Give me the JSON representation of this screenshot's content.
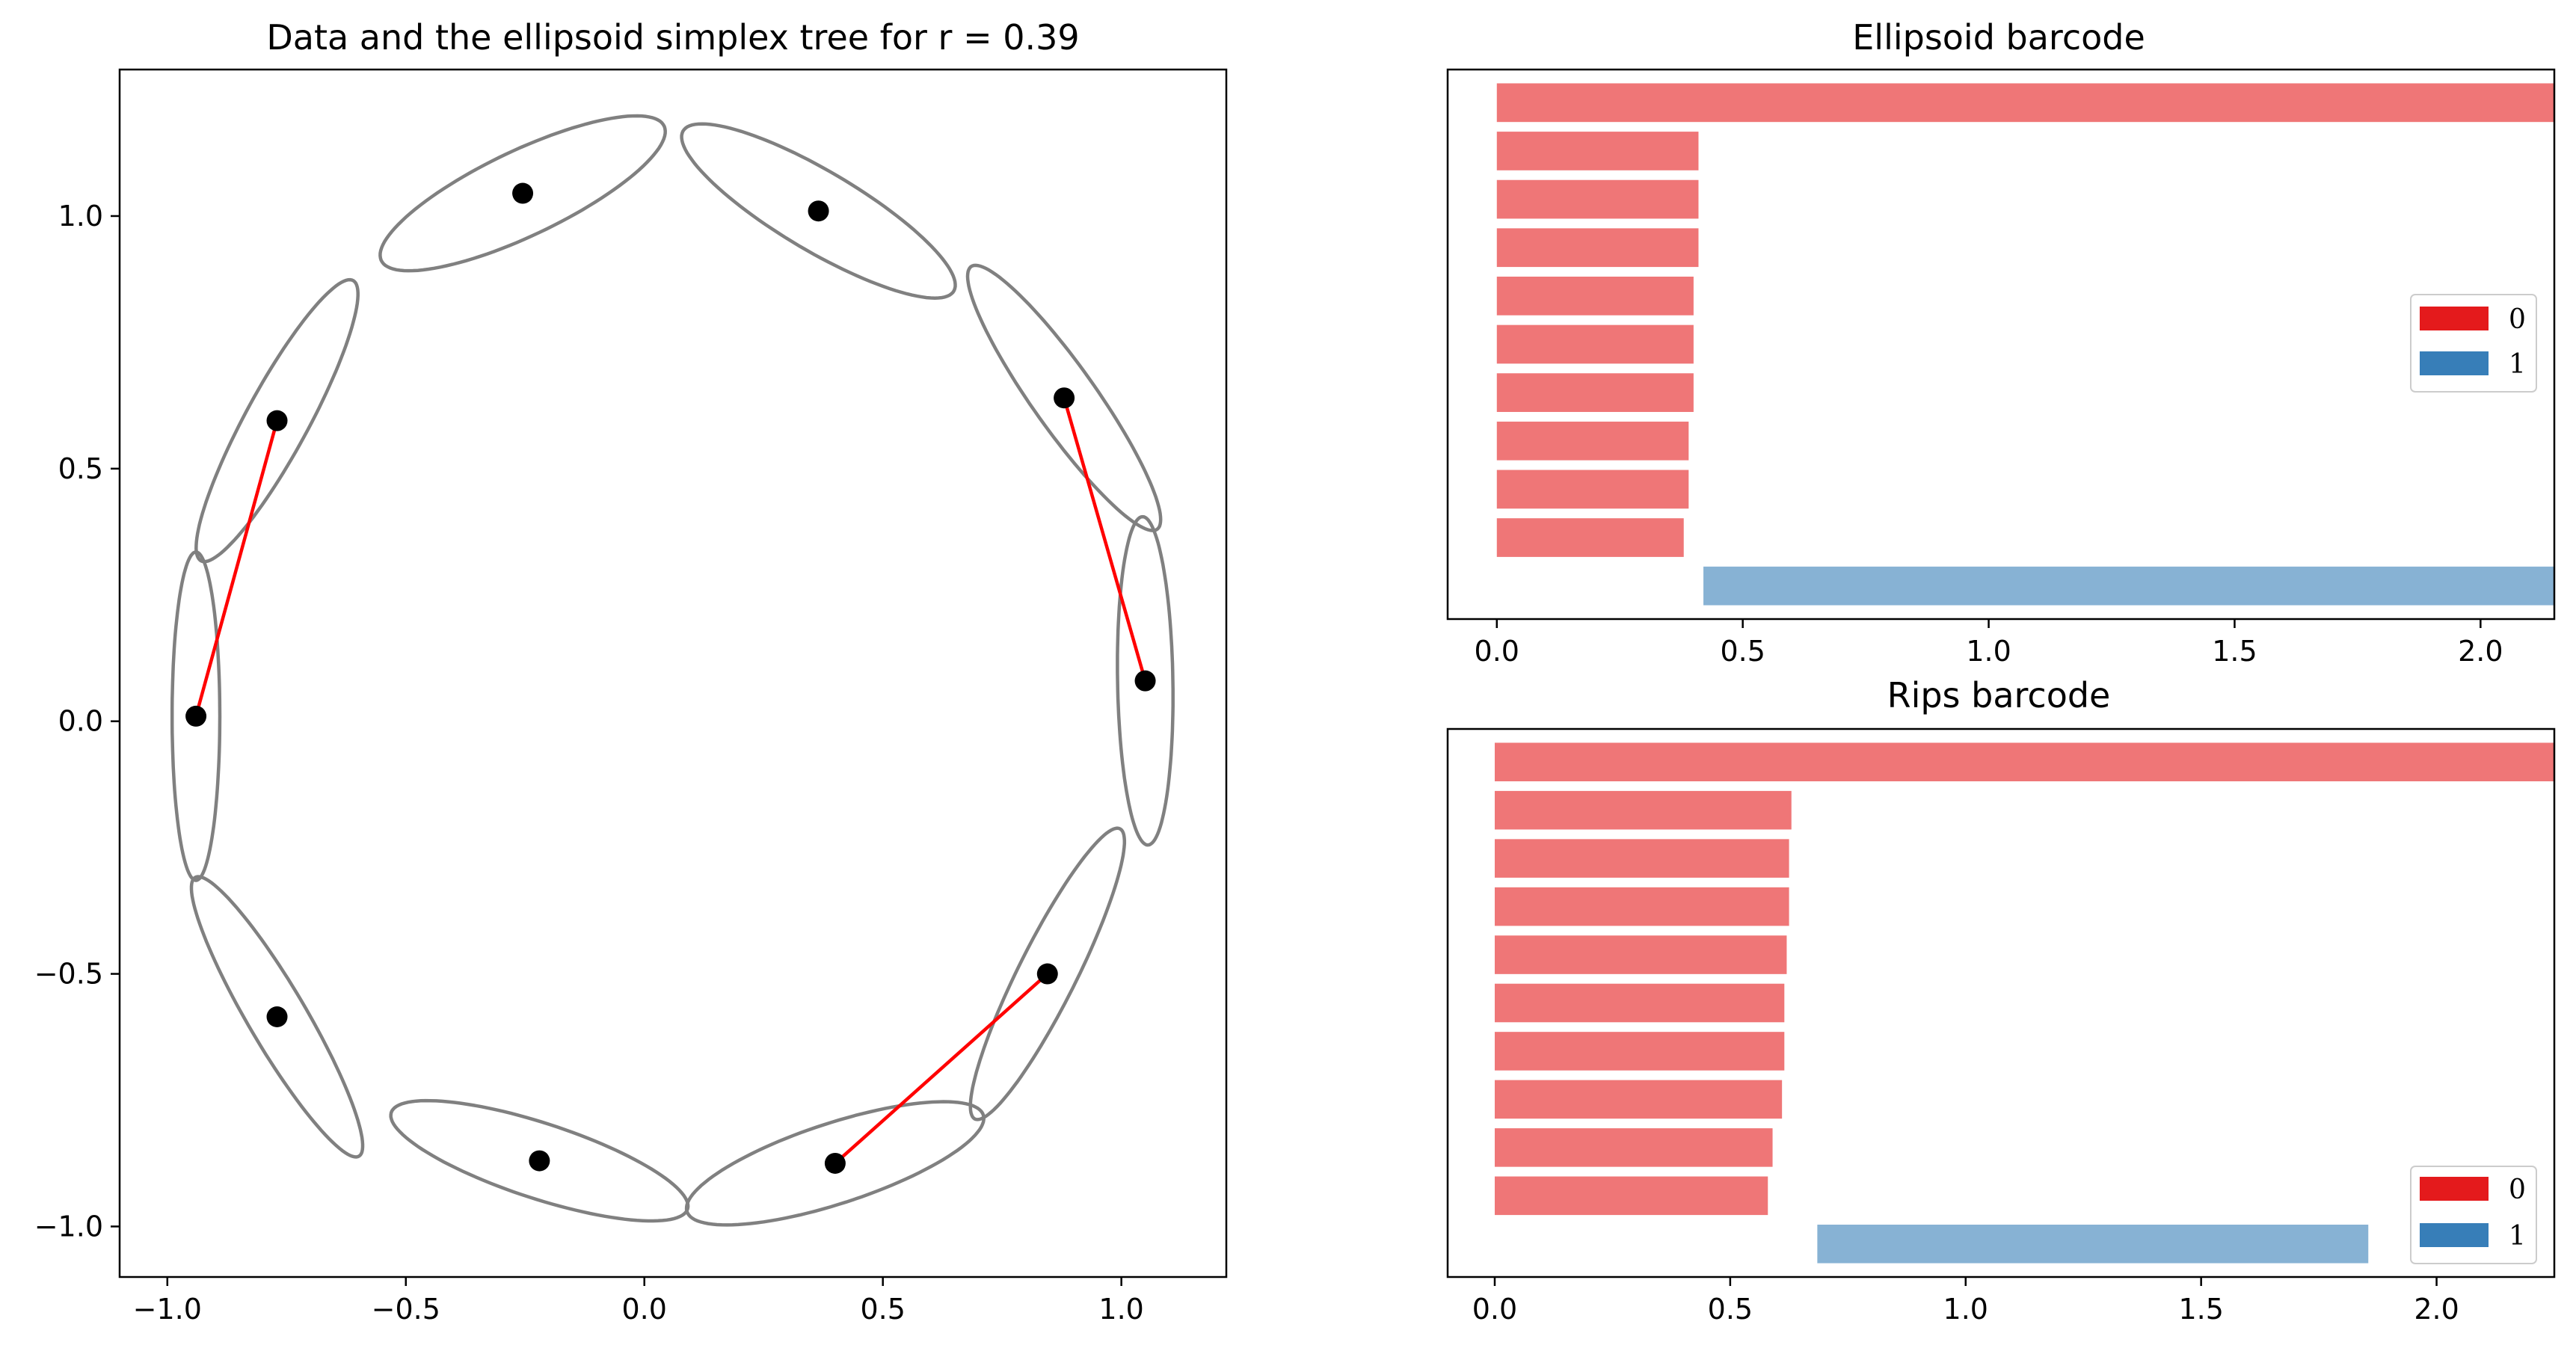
{
  "figure": {
    "colors": {
      "h0": "#e41a1c",
      "h1": "#377eb8",
      "ellipse": "#808080",
      "point": "#000000",
      "edge": "#ff0000"
    }
  },
  "chart_data": [
    {
      "type": "scatter",
      "title": "Data and the ellipsoid simplex tree for r = 0.39",
      "xlim": [
        -1.1,
        1.22
      ],
      "ylim": [
        -1.1,
        1.29
      ],
      "xticks": [
        -1.0,
        -0.5,
        0.0,
        0.5,
        1.0
      ],
      "xtick_labels": [
        "−1.0",
        "−0.5",
        "0.0",
        "0.5",
        "1.0"
      ],
      "yticks": [
        -1.0,
        -0.5,
        0.0,
        0.5,
        1.0
      ],
      "ytick_labels": [
        "−1.0",
        "−0.5",
        "0.0",
        "0.5",
        "1.0"
      ],
      "points": [
        {
          "x": -0.94,
          "y": 0.01
        },
        {
          "x": -0.77,
          "y": 0.595
        },
        {
          "x": -0.255,
          "y": 1.045
        },
        {
          "x": 0.365,
          "y": 1.01
        },
        {
          "x": 0.88,
          "y": 0.64
        },
        {
          "x": 1.05,
          "y": 0.08
        },
        {
          "x": 0.845,
          "y": -0.5
        },
        {
          "x": 0.4,
          "y": -0.875
        },
        {
          "x": -0.22,
          "y": -0.87
        },
        {
          "x": -0.77,
          "y": -0.585
        }
      ],
      "ellipses": [
        {
          "cx": -0.94,
          "cy": 0.01,
          "a": 0.325,
          "b": 0.05,
          "angle": 90
        },
        {
          "cx": -0.77,
          "cy": 0.595,
          "a": 0.32,
          "b": 0.065,
          "angle": 60
        },
        {
          "cx": -0.255,
          "cy": 1.045,
          "a": 0.325,
          "b": 0.085,
          "angle": 24
        },
        {
          "cx": 0.365,
          "cy": 1.01,
          "a": 0.325,
          "b": 0.08,
          "angle": -29
        },
        {
          "cx": 0.88,
          "cy": 0.64,
          "a": 0.325,
          "b": 0.065,
          "angle": -53
        },
        {
          "cx": 1.05,
          "cy": 0.08,
          "a": 0.325,
          "b": 0.058,
          "angle": -89
        },
        {
          "cx": 0.845,
          "cy": -0.5,
          "a": 0.325,
          "b": 0.06,
          "angle": -118
        },
        {
          "cx": 0.4,
          "cy": -0.875,
          "a": 0.325,
          "b": 0.08,
          "angle": 17
        },
        {
          "cx": -0.22,
          "cy": -0.87,
          "a": 0.325,
          "b": 0.075,
          "angle": -17
        },
        {
          "cx": -0.77,
          "cy": -0.585,
          "a": 0.325,
          "b": 0.06,
          "angle": -58
        }
      ],
      "edges": [
        {
          "x1": -0.77,
          "y1": 0.595,
          "x2": -0.94,
          "y2": 0.01
        },
        {
          "x1": 0.88,
          "y1": 0.64,
          "x2": 1.05,
          "y2": 0.08
        },
        {
          "x1": 0.845,
          "y1": -0.5,
          "x2": 0.4,
          "y2": -0.875
        }
      ]
    },
    {
      "type": "bar",
      "title": "Ellipsoid barcode",
      "xlim": [
        -0.1,
        2.15
      ],
      "xticks": [
        0.0,
        0.5,
        1.0,
        1.5,
        2.0
      ],
      "xtick_labels": [
        "0.0",
        "0.5",
        "1.0",
        "1.5",
        "2.0"
      ],
      "bars": [
        {
          "dim": 0,
          "birth": 0,
          "death": "inf"
        },
        {
          "dim": 0,
          "birth": 0,
          "death": 0.41
        },
        {
          "dim": 0,
          "birth": 0,
          "death": 0.41
        },
        {
          "dim": 0,
          "birth": 0,
          "death": 0.41
        },
        {
          "dim": 0,
          "birth": 0,
          "death": 0.4
        },
        {
          "dim": 0,
          "birth": 0,
          "death": 0.4
        },
        {
          "dim": 0,
          "birth": 0,
          "death": 0.4
        },
        {
          "dim": 0,
          "birth": 0,
          "death": 0.39
        },
        {
          "dim": 0,
          "birth": 0,
          "death": 0.39
        },
        {
          "dim": 0,
          "birth": 0,
          "death": 0.38
        },
        {
          "dim": 1,
          "birth": 0.42,
          "death": "inf"
        }
      ],
      "legend": {
        "position": "center-right",
        "entries": [
          "0",
          "1"
        ]
      }
    },
    {
      "type": "bar",
      "title": "Rips barcode",
      "xlim": [
        -0.1,
        2.25
      ],
      "xticks": [
        0.0,
        0.5,
        1.0,
        1.5,
        2.0
      ],
      "xtick_labels": [
        "0.0",
        "0.5",
        "1.0",
        "1.5",
        "2.0"
      ],
      "bars": [
        {
          "dim": 0,
          "birth": 0,
          "death": "inf"
        },
        {
          "dim": 0,
          "birth": 0,
          "death": 0.63
        },
        {
          "dim": 0,
          "birth": 0,
          "death": 0.625
        },
        {
          "dim": 0,
          "birth": 0,
          "death": 0.625
        },
        {
          "dim": 0,
          "birth": 0,
          "death": 0.62
        },
        {
          "dim": 0,
          "birth": 0,
          "death": 0.615
        },
        {
          "dim": 0,
          "birth": 0,
          "death": 0.615
        },
        {
          "dim": 0,
          "birth": 0,
          "death": 0.61
        },
        {
          "dim": 0,
          "birth": 0,
          "death": 0.59
        },
        {
          "dim": 0,
          "birth": 0,
          "death": 0.58
        },
        {
          "dim": 1,
          "birth": 0.685,
          "death": 1.855
        }
      ],
      "legend": {
        "position": "lower-right",
        "entries": [
          "0",
          "1"
        ]
      }
    }
  ]
}
